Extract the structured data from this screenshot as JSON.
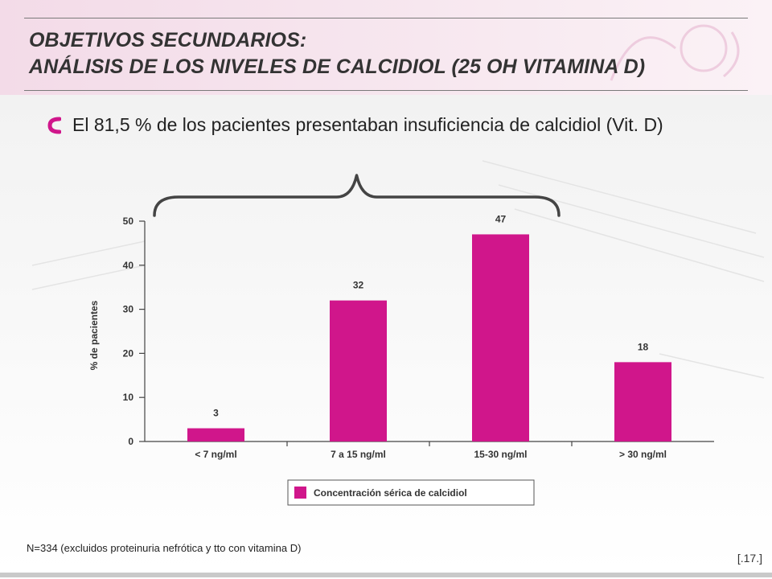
{
  "header": {
    "title_line1": "OBJETIVOS SECUNDARIOS:",
    "title_line2": "ANÁLISIS DE LOS NIVELES DE CALCIDIOL (25 OH VITAMINA D)"
  },
  "bullet": {
    "icon": "pink-bullet-icon",
    "text": "El 81,5 % de los pacientes presentaban insuficiencia de calcidiol (Vit. D)"
  },
  "colors": {
    "accent": "#d0168b",
    "text": "#333333"
  },
  "chart_data": {
    "type": "bar",
    "categories": [
      "< 7 ng/ml",
      "7 a 15 ng/ml",
      "15-30 ng/ml",
      "> 30 ng/ml"
    ],
    "series": [
      {
        "name": "Concentración sérica de calcidiol",
        "values": [
          3,
          32,
          47,
          18
        ]
      }
    ],
    "data_labels": [
      "3",
      "32",
      "47",
      "18"
    ],
    "ylabel": "% de pacientes",
    "xlabel": "",
    "ylim": [
      0,
      50
    ],
    "yticks": [
      0,
      10,
      20,
      30,
      40,
      50
    ],
    "ytick_labels": [
      "0",
      "10",
      "20",
      "30",
      "40",
      "50"
    ],
    "grid": false,
    "legend_position": "bottom",
    "annotation": "brace grouping the first three categories"
  },
  "footer": {
    "note": "N=334 (excluidos proteinuria nefrótica y tto con vitamina D)",
    "page": "[.17.]"
  }
}
